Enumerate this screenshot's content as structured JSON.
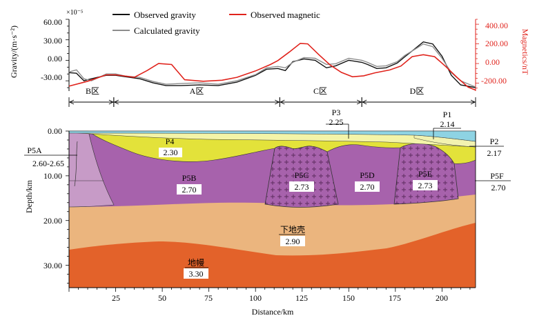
{
  "chart_data": [
    {
      "type": "line",
      "title": "",
      "ylabel": "Gravity/(m·s⁻²)",
      "y_scale_note": "×10⁻⁵",
      "y2label": "Magnetics/nT",
      "xlim": [
        0,
        218
      ],
      "ylim": [
        -45,
        60
      ],
      "y2lim": [
        -280,
        450
      ],
      "y_ticks": [
        "60.00",
        "30.00",
        "0.00",
        "-30.00"
      ],
      "y2_ticks": [
        "400.00",
        "200.00",
        "0.00",
        "-200.00"
      ],
      "legend": {
        "observed_gravity": "Observed gravity",
        "calculated_gravity": "Calculated gravity",
        "observed_magnetic": "Observed magnetic"
      },
      "colors": {
        "observed": "#111111",
        "calculated": "#8c8c8c",
        "magnetic": "#e0221b"
      },
      "series": [
        {
          "name": "Observed gravity",
          "x": [
            0,
            4,
            8,
            12,
            20,
            25,
            30,
            38,
            45,
            52,
            60,
            70,
            80,
            90,
            100,
            106,
            112,
            116,
            120,
            126,
            132,
            138,
            143,
            150,
            157,
            160,
            165,
            170,
            176,
            180,
            186,
            190,
            195,
            200,
            205,
            210,
            218
          ],
          "values": [
            -18,
            -19,
            -30,
            -27,
            -22,
            -22,
            -24,
            -27,
            -33,
            -37,
            -37,
            -36,
            -37,
            -32,
            -22,
            -13,
            -12,
            -15,
            -2,
            2,
            0,
            -11,
            -8,
            0,
            -3,
            -6,
            -12,
            -11,
            -4,
            5,
            18,
            27,
            24,
            6,
            -22,
            -36,
            -40
          ]
        },
        {
          "name": "Calculated gravity",
          "x": [
            0,
            4,
            8,
            12,
            20,
            25,
            30,
            38,
            45,
            52,
            60,
            70,
            80,
            90,
            100,
            106,
            112,
            116,
            120,
            126,
            132,
            138,
            143,
            150,
            157,
            160,
            165,
            170,
            176,
            180,
            186,
            190,
            195,
            200,
            205,
            210,
            218
          ],
          "values": [
            -17,
            -14,
            -27,
            -30,
            -20,
            -20,
            -23,
            -25,
            -31,
            -35,
            -34,
            -33,
            -35,
            -30,
            -21,
            -11,
            -9,
            -11,
            -3,
            4,
            3,
            -6,
            -5,
            3,
            0,
            -3,
            -9,
            -8,
            -2,
            7,
            17,
            24,
            20,
            3,
            -18,
            -30,
            -39
          ]
        },
        {
          "name": "Observed magnetic",
          "axis": "right",
          "x": [
            0,
            10,
            20,
            25,
            35,
            42,
            48,
            55,
            62,
            72,
            82,
            90,
            100,
            108,
            112,
            118,
            124,
            128,
            134,
            140,
            146,
            152,
            158,
            164,
            172,
            178,
            184,
            190,
            196,
            202,
            208,
            214,
            218
          ],
          "values": [
            -230,
            -180,
            -115,
            -115,
            -140,
            -70,
            0,
            -10,
            -165,
            -180,
            -170,
            -140,
            -75,
            -10,
            30,
            115,
            205,
            200,
            90,
            -15,
            -90,
            -135,
            -125,
            -95,
            -65,
            -25,
            70,
            90,
            70,
            -30,
            -140,
            -240,
            -270
          ]
        }
      ],
      "zone_axis": {
        "zones": [
          {
            "label": "B区",
            "x0": 0,
            "x1": 24
          },
          {
            "label": "A区",
            "x0": 24,
            "x1": 113
          },
          {
            "label": "C区",
            "x0": 113,
            "x1": 157
          },
          {
            "label": "D区",
            "x0": 157,
            "x1": 218
          }
        ]
      }
    },
    {
      "type": "cross-section",
      "xlabel": "Distance/km",
      "ylabel": "Depth/km",
      "xlim": [
        0,
        218
      ],
      "ylim": [
        0,
        35
      ],
      "x_ticks": [
        "25",
        "50",
        "75",
        "100",
        "125",
        "150",
        "175",
        "200"
      ],
      "y_ticks": [
        "0.00",
        "10.00",
        "20.00",
        "30.00"
      ],
      "bodies": [
        {
          "name": "P1",
          "density": "2.14",
          "color": "#8ed3e3"
        },
        {
          "name": "P2",
          "density": "2.17",
          "color": "#f2f2b0"
        },
        {
          "name": "P3",
          "density": "2.25",
          "color": "#f4f4a8"
        },
        {
          "name": "P4",
          "density": "2.30",
          "color": "#e3e23a"
        },
        {
          "name": "P5A",
          "density": "2.60-2.65",
          "color": "#c79bc7"
        },
        {
          "name": "P5B",
          "density": "2.70",
          "color": "#a762ac"
        },
        {
          "name": "P5C",
          "density": "2.73",
          "color": "#a762ac"
        },
        {
          "name": "P5D",
          "density": "2.70",
          "color": "#a762ac"
        },
        {
          "name": "P5E",
          "density": "2.73",
          "color": "#a762ac"
        },
        {
          "name": "P5F",
          "density": "2.70",
          "color": "#a762ac"
        },
        {
          "name": "下地壳",
          "density": "2.90",
          "color": "#ebb57e"
        },
        {
          "name": "地幔",
          "density": "3.30",
          "color": "#e3622a"
        }
      ]
    }
  ]
}
